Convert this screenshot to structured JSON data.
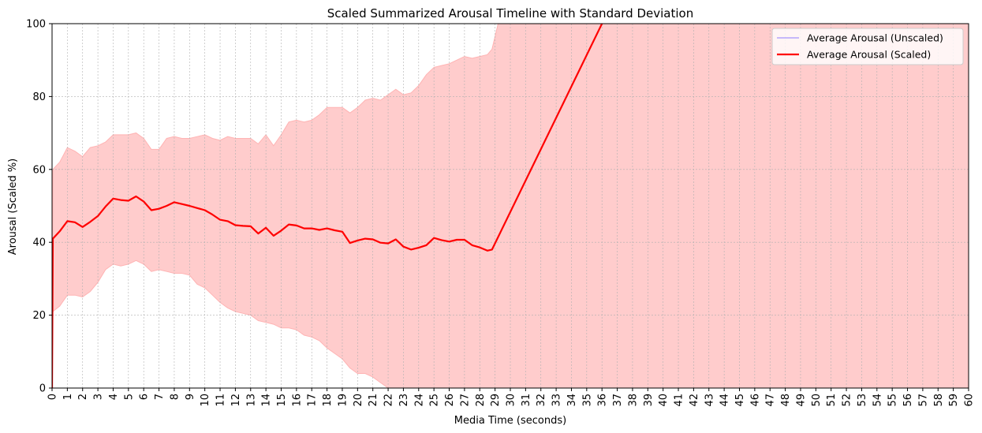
{
  "chart_data": {
    "type": "line",
    "title": "Scaled Summarized Arousal Timeline with Standard Deviation",
    "xlabel": "Media Time (seconds)",
    "ylabel": "Arousal (Scaled %)",
    "xlim": [
      0,
      60
    ],
    "ylim": [
      0,
      100
    ],
    "xticks": [
      "0",
      "1",
      "2",
      "3",
      "4",
      "5",
      "6",
      "7",
      "8",
      "9",
      "10",
      "11",
      "12",
      "13",
      "14",
      "15",
      "16",
      "17",
      "18",
      "19",
      "20",
      "21",
      "22",
      "23",
      "24",
      "25",
      "26",
      "27",
      "28",
      "29",
      "30",
      "31",
      "32",
      "33",
      "34",
      "35",
      "36",
      "37",
      "38",
      "39",
      "40",
      "41",
      "42",
      "43",
      "44",
      "45",
      "46",
      "47",
      "48",
      "49",
      "50",
      "51",
      "52",
      "53",
      "54",
      "55",
      "56",
      "57",
      "58",
      "59",
      "60"
    ],
    "yticks": [
      "0",
      "20",
      "40",
      "60",
      "80",
      "100"
    ],
    "grid": true,
    "legend_position": "top-right",
    "series": [
      {
        "name": "Average Arousal (Unscaled)",
        "color": "#8c7bff",
        "x": [],
        "y": []
      },
      {
        "name": "Average Arousal (Scaled)",
        "color": "#ff0000",
        "x": [
          0,
          0.05,
          0.5,
          1.0,
          1.5,
          2.0,
          2.5,
          3.0,
          3.5,
          4.0,
          4.5,
          5.0,
          5.5,
          6.0,
          6.5,
          7.0,
          7.5,
          8.0,
          8.5,
          9.0,
          9.5,
          10.0,
          10.5,
          11.0,
          11.5,
          12.0,
          12.5,
          13.0,
          13.5,
          14.0,
          14.5,
          15.0,
          15.5,
          16.0,
          16.5,
          17.0,
          17.5,
          18.0,
          18.5,
          19.0,
          19.5,
          20.0,
          20.5,
          21.0,
          21.5,
          22.0,
          22.5,
          23.0,
          23.5,
          24.0,
          24.5,
          25.0,
          25.5,
          26.0,
          26.5,
          27.0,
          27.5,
          28.0,
          28.5,
          28.8,
          36.0
        ],
        "y": [
          0,
          41,
          43,
          45.8,
          45.5,
          44.2,
          45.6,
          47.2,
          49.8,
          52,
          51.6,
          51.4,
          52.6,
          51.2,
          48.8,
          49.2,
          50,
          51,
          50.5,
          50,
          49.4,
          48.8,
          47.6,
          46.2,
          45.8,
          44.7,
          44.5,
          44.4,
          42.4,
          44,
          41.8,
          43.2,
          44.9,
          44.6,
          43.8,
          43.8,
          43.4,
          43.8,
          43.3,
          42.9,
          39.8,
          40.5,
          41,
          40.8,
          39.9,
          39.7,
          40.8,
          38.8,
          38,
          38.5,
          39.2,
          41.2,
          40.6,
          40.2,
          40.7,
          40.7,
          39.2,
          38.6,
          37.7,
          38,
          100
        ]
      }
    ],
    "std_band": {
      "color": "#ffcccc",
      "x": [
        0,
        0.05,
        0.5,
        1.0,
        1.5,
        2.0,
        2.5,
        3.0,
        3.5,
        4.0,
        4.5,
        5.0,
        5.5,
        6.0,
        6.5,
        7.0,
        7.5,
        8.0,
        8.5,
        9.0,
        9.5,
        10.0,
        10.5,
        11.0,
        11.5,
        12.0,
        12.5,
        13.0,
        13.5,
        14.0,
        14.5,
        15.0,
        15.5,
        16.0,
        16.5,
        17.0,
        17.5,
        18.0,
        18.5,
        19.0,
        19.5,
        20.0,
        20.5,
        21.0,
        21.5,
        22.0,
        22.5,
        23.0,
        23.5,
        24.0,
        24.5,
        25.0,
        25.5,
        26.0,
        26.5,
        27.0,
        27.5,
        28.0,
        28.5,
        28.8,
        29.2,
        60
      ],
      "upper": [
        0,
        60,
        62,
        66,
        65,
        63.5,
        66,
        66.5,
        67.5,
        69.5,
        69.5,
        69.5,
        70,
        68.5,
        65.5,
        65.5,
        68.5,
        69,
        68.5,
        68.5,
        69,
        69.5,
        68.5,
        68,
        69,
        68.5,
        68.5,
        68.5,
        67,
        69.5,
        66.5,
        69.5,
        73,
        73.5,
        73,
        73.5,
        75,
        77,
        77,
        77,
        75.5,
        77,
        79,
        79.5,
        79,
        80.5,
        82,
        80.5,
        81,
        83,
        86,
        88,
        88.5,
        89,
        90,
        91,
        90.5,
        91,
        91.5,
        93,
        100,
        100
      ],
      "lower": [
        0,
        21,
        22.5,
        25.5,
        25.5,
        25,
        26.5,
        29,
        32.5,
        34,
        33.5,
        34,
        35,
        34,
        32,
        32.5,
        32,
        31.5,
        31.5,
        31,
        28.5,
        27.5,
        25.5,
        23.5,
        22,
        21,
        20.5,
        20,
        18.5,
        18,
        17.5,
        16.5,
        16.5,
        16,
        14.5,
        14,
        13,
        11,
        9.5,
        8,
        5.5,
        4,
        4,
        3,
        1.5,
        0,
        0,
        0,
        0,
        0,
        0,
        0,
        0,
        0,
        0,
        0,
        0,
        0,
        0,
        0,
        0,
        0
      ]
    }
  }
}
